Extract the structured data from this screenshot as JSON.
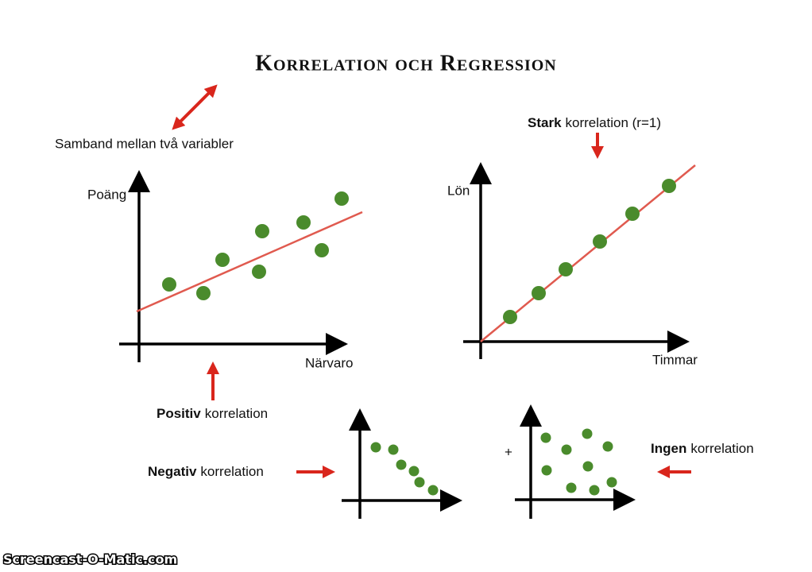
{
  "title": "Korrelation och Regression",
  "subtitle": "Samband mellan två variabler",
  "charts": [
    {
      "y_label": "Poäng",
      "x_label": "Närvaro"
    },
    {
      "y_label": "Lön",
      "x_label": "Timmar"
    }
  ],
  "labels": {
    "strong": {
      "bold": "Stark",
      "rest": "korrelation (r=1)"
    },
    "positive": {
      "bold": "Positiv",
      "rest": "korrelation"
    },
    "negative": {
      "bold": "Negativ",
      "rest": "korrelation"
    },
    "none": {
      "bold": "Ingen",
      "rest": "korrelation"
    }
  },
  "plus": "+",
  "watermark": "Screencast-O-Matic.com"
}
